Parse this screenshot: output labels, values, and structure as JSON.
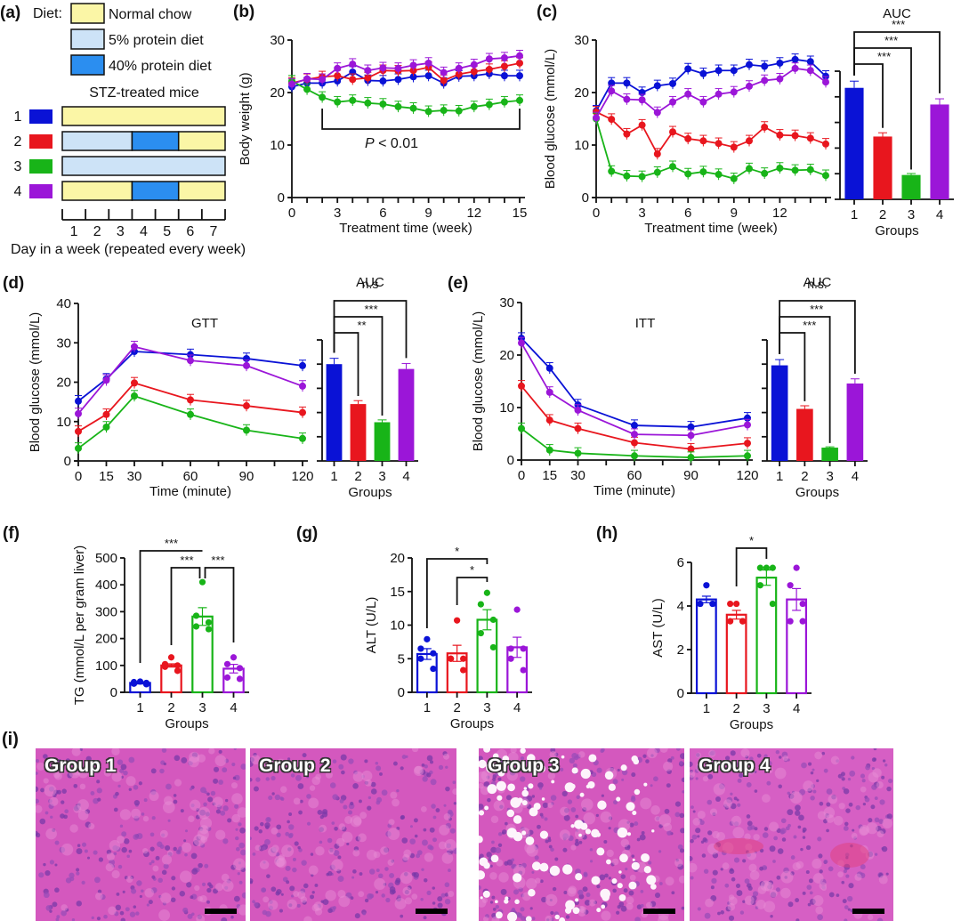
{
  "colors": {
    "g1": "#0a12d6",
    "g2": "#e8161e",
    "g3": "#18b418",
    "g4": "#9b16d8",
    "normal_chow": "#fbf6a6",
    "protein5": "#cde3f7",
    "protein40": "#2b8ef0"
  },
  "panels": {
    "a": {
      "label": "(a)",
      "diet_label": "Diet:",
      "legend": [
        {
          "name": "Normal chow",
          "key": "normal_chow"
        },
        {
          "name": "5% protein diet",
          "key": "protein5"
        },
        {
          "name": "40% protein diet",
          "key": "protein40"
        }
      ],
      "title": "STZ-treated mice",
      "groups": [
        {
          "id": "1",
          "color": "g1",
          "days": [
            "normal_chow",
            "normal_chow",
            "normal_chow",
            "normal_chow",
            "normal_chow",
            "normal_chow",
            "normal_chow"
          ]
        },
        {
          "id": "2",
          "color": "g2",
          "days": [
            "protein5",
            "protein5",
            "protein5",
            "protein40",
            "protein40",
            "normal_chow",
            "normal_chow"
          ]
        },
        {
          "id": "3",
          "color": "g3",
          "days": [
            "protein5",
            "protein5",
            "protein5",
            "protein5",
            "protein5",
            "protein5",
            "protein5"
          ]
        },
        {
          "id": "4",
          "color": "g4",
          "days": [
            "normal_chow",
            "normal_chow",
            "normal_chow",
            "protein40",
            "protein40",
            "normal_chow",
            "normal_chow"
          ]
        }
      ],
      "day_ticks": [
        "1",
        "2",
        "3",
        "4",
        "5",
        "6",
        "7"
      ],
      "xlabel": "Day in a week (repeated every week)"
    },
    "i": {
      "label": "(i)",
      "images": [
        {
          "title": "Group 1",
          "note": "normal liver histology"
        },
        {
          "title": "Group 2",
          "note": "normal liver histology"
        },
        {
          "title": "Group 3",
          "note": "lipid droplet vacuoles"
        },
        {
          "title": "Group 4",
          "note": "normal liver histology"
        }
      ]
    }
  },
  "chart_data": [
    {
      "id": "b",
      "label": "(b)",
      "type": "line",
      "xlabel": "Treatment time (week)",
      "ylabel": "Body weight (g)",
      "xlim": [
        0,
        15
      ],
      "ylim": [
        0,
        30
      ],
      "xticks": [
        "0",
        "3",
        "6",
        "9",
        "12",
        "15"
      ],
      "yticks": [
        "0",
        "10",
        "20",
        "30"
      ],
      "x": [
        0,
        1,
        2,
        3,
        4,
        5,
        6,
        7,
        8,
        9,
        10,
        11,
        12,
        13,
        14,
        15
      ],
      "series": [
        {
          "name": "1",
          "color": "g1",
          "values": [
            21.1,
            21.8,
            21.8,
            22.2,
            23.9,
            22.3,
            22.2,
            22.5,
            23.0,
            23.2,
            21.8,
            23.1,
            23.2,
            23.6,
            23.2,
            23.2
          ]
        },
        {
          "name": "2",
          "color": "g2",
          "values": [
            21.8,
            22.5,
            23.0,
            23.2,
            22.5,
            22.8,
            24.2,
            24.1,
            24.2,
            24.8,
            22.3,
            23.5,
            24.0,
            24.4,
            25.0,
            25.6
          ]
        },
        {
          "name": "3",
          "color": "g3",
          "values": [
            22.2,
            20.6,
            19.1,
            18.2,
            18.5,
            18.0,
            17.8,
            17.3,
            17.0,
            16.4,
            16.6,
            16.5,
            17.3,
            17.7,
            18.2,
            18.5
          ]
        },
        {
          "name": "4",
          "color": "g4",
          "values": [
            21.6,
            22.6,
            22.5,
            24.6,
            25.4,
            24.2,
            24.7,
            24.6,
            25.2,
            25.6,
            23.8,
            24.6,
            25.3,
            26.4,
            26.6,
            27.0
          ]
        }
      ],
      "annotation": {
        "text_italic": "P",
        "text": " < 0.01",
        "x_from": 2,
        "x_to": 15,
        "y": 13
      }
    },
    {
      "id": "c",
      "label": "(c)",
      "type": "line",
      "xlabel": "Treatment time (week)",
      "ylabel": "Blood glucose (mmol/L)",
      "xlim": [
        0,
        15
      ],
      "ylim": [
        0,
        30
      ],
      "xticks": [
        "0",
        "3",
        "6",
        "9",
        "12"
      ],
      "yticks": [
        "0",
        "10",
        "20",
        "30"
      ],
      "x": [
        0,
        1,
        2,
        3,
        4,
        5,
        6,
        7,
        8,
        9,
        10,
        11,
        12,
        13,
        14,
        15
      ],
      "series": [
        {
          "name": "1",
          "color": "g1",
          "values": [
            16.5,
            21.8,
            21.8,
            20.0,
            21.3,
            21.7,
            24.5,
            23.6,
            24.2,
            24.2,
            25.3,
            25.0,
            25.6,
            26.3,
            25.9,
            23.1
          ]
        },
        {
          "name": "2",
          "color": "g2",
          "values": [
            16.3,
            14.9,
            12.1,
            13.8,
            8.3,
            12.5,
            11.2,
            10.8,
            10.3,
            9.6,
            10.8,
            13.4,
            11.9,
            11.8,
            11.3,
            10.2
          ]
        },
        {
          "name": "3",
          "color": "g3",
          "values": [
            15.0,
            5.0,
            4.1,
            4.0,
            4.8,
            5.9,
            4.5,
            4.9,
            4.4,
            3.6,
            5.5,
            4.6,
            5.6,
            5.2,
            5.3,
            4.2
          ]
        },
        {
          "name": "4",
          "color": "g4",
          "values": [
            15.2,
            20.3,
            18.7,
            18.6,
            16.2,
            18.2,
            19.7,
            18.2,
            19.7,
            20.1,
            21.2,
            22.3,
            22.6,
            24.6,
            24.2,
            22.0
          ]
        }
      ]
    },
    {
      "id": "c-auc",
      "type": "bar",
      "title": "AUC",
      "xlabel": "Groups",
      "categories": [
        "1",
        "2",
        "3",
        "4"
      ],
      "ylim": [
        0,
        100
      ],
      "values": [
        87,
        49,
        19,
        74
      ],
      "colors": [
        "g1",
        "g2",
        "g3",
        "g4"
      ],
      "significance": [
        {
          "from": "1",
          "to": "2",
          "label": "***"
        },
        {
          "from": "1",
          "to": "3",
          "label": "***"
        },
        {
          "from": "1",
          "to": "4",
          "label": "***"
        }
      ]
    },
    {
      "id": "d",
      "label": "(d)",
      "type": "line",
      "title": "GTT",
      "xlabel": "Time (minute)",
      "ylabel": "Blood glucose (mmol/L)",
      "xlim": [
        0,
        120
      ],
      "ylim": [
        0,
        40
      ],
      "xticks": [
        "0",
        "15",
        "30",
        "60",
        "90",
        "120"
      ],
      "yticks": [
        "0",
        "10",
        "20",
        "30",
        "40"
      ],
      "x": [
        0,
        15,
        30,
        60,
        90,
        120
      ],
      "series": [
        {
          "name": "1",
          "color": "g1",
          "values": [
            15.2,
            20.8,
            27.8,
            27.0,
            26.0,
            24.2
          ]
        },
        {
          "name": "2",
          "color": "g2",
          "values": [
            7.5,
            11.8,
            19.8,
            15.5,
            14.0,
            12.3
          ]
        },
        {
          "name": "3",
          "color": "g3",
          "values": [
            3.2,
            8.6,
            16.5,
            11.8,
            7.8,
            5.7
          ]
        },
        {
          "name": "4",
          "color": "g4",
          "values": [
            12.0,
            20.5,
            29.0,
            25.5,
            24.2,
            19.0
          ]
        }
      ]
    },
    {
      "id": "d-auc",
      "type": "bar",
      "title": "AUC",
      "xlabel": "Groups",
      "categories": [
        "1",
        "2",
        "3",
        "4"
      ],
      "ylim": [
        0,
        100
      ],
      "values": [
        80,
        47,
        32,
        76
      ],
      "colors": [
        "g1",
        "g2",
        "g3",
        "g4"
      ],
      "significance": [
        {
          "from": "1",
          "to": "2",
          "label": "**"
        },
        {
          "from": "1",
          "to": "3",
          "label": "***"
        },
        {
          "from": "1",
          "to": "4",
          "label": "n.s"
        }
      ]
    },
    {
      "id": "e",
      "label": "(e)",
      "type": "line",
      "title": "ITT",
      "xlabel": "Time (minute)",
      "ylabel": "Blood glucose (mmol/L)",
      "xlim": [
        0,
        120
      ],
      "ylim": [
        0,
        30
      ],
      "xticks": [
        "0",
        "15",
        "30",
        "60",
        "90",
        "120"
      ],
      "yticks": [
        "0",
        "10",
        "20",
        "30"
      ],
      "x": [
        0,
        15,
        30,
        60,
        90,
        120
      ],
      "series": [
        {
          "name": "1",
          "color": "g1",
          "values": [
            23.2,
            17.5,
            10.5,
            6.6,
            6.3,
            8.0
          ]
        },
        {
          "name": "2",
          "color": "g2",
          "values": [
            14.1,
            7.6,
            6.0,
            3.3,
            2.1,
            3.2
          ]
        },
        {
          "name": "3",
          "color": "g3",
          "values": [
            6.0,
            1.9,
            1.3,
            0.8,
            0.5,
            0.8
          ]
        },
        {
          "name": "4",
          "color": "g4",
          "values": [
            22.3,
            12.9,
            9.5,
            4.9,
            4.7,
            6.7
          ]
        }
      ]
    },
    {
      "id": "e-auc",
      "type": "bar",
      "title": "AUC",
      "xlabel": "Groups",
      "categories": [
        "1",
        "2",
        "3",
        "4"
      ],
      "ylim": [
        0,
        100
      ],
      "values": [
        79,
        43,
        11,
        64
      ],
      "colors": [
        "g1",
        "g2",
        "g3",
        "g4"
      ],
      "significance": [
        {
          "from": "1",
          "to": "2",
          "label": "***"
        },
        {
          "from": "1",
          "to": "3",
          "label": "***"
        },
        {
          "from": "1",
          "to": "4",
          "label": "n.s."
        }
      ]
    },
    {
      "id": "f",
      "label": "(f)",
      "type": "bar",
      "xlabel": "Groups",
      "ylabel": "TG (mmol/L per gram liver)",
      "categories": [
        "1",
        "2",
        "3",
        "4"
      ],
      "ylim": [
        0,
        500
      ],
      "yticks": [
        "0",
        "100",
        "200",
        "300",
        "400",
        "500"
      ],
      "values": [
        35,
        100,
        282,
        88
      ],
      "sem": [
        4,
        6,
        33,
        16
      ],
      "colors": [
        "g1",
        "g2",
        "g3",
        "g4"
      ],
      "points": [
        [
          40,
          38,
          35,
          32,
          30
        ],
        [
          130,
          105,
          100,
          95,
          80
        ],
        [
          410,
          285,
          260,
          245,
          235
        ],
        [
          130,
          105,
          90,
          55,
          50
        ]
      ],
      "significance": [
        {
          "from": "1",
          "to": "3",
          "label": "***"
        },
        {
          "from": "2",
          "to": "3",
          "label": "***"
        },
        {
          "from": "3",
          "to": "4",
          "label": "***"
        }
      ]
    },
    {
      "id": "g",
      "label": "(g)",
      "type": "bar",
      "xlabel": "Groups",
      "ylabel": "ALT (U/L)",
      "categories": [
        "1",
        "2",
        "3",
        "4"
      ],
      "ylim": [
        0,
        20
      ],
      "yticks": [
        "0",
        "5",
        "10",
        "15",
        "20"
      ],
      "values": [
        5.7,
        5.8,
        10.8,
        6.7
      ],
      "sem": [
        0.8,
        1.2,
        1.5,
        1.5
      ],
      "colors": [
        "g1",
        "g2",
        "g3",
        "g4"
      ],
      "points": [
        [
          7.9,
          6.5,
          5.8,
          5.0,
          3.5
        ],
        [
          10.7,
          5.0,
          5.0,
          5.0,
          3.3
        ],
        [
          14.8,
          13.1,
          10.8,
          8.8,
          6.7
        ],
        [
          12.3,
          6.5,
          6.5,
          5.0,
          3.3
        ]
      ],
      "significance": [
        {
          "from": "1",
          "to": "3",
          "label": "*"
        },
        {
          "from": "2",
          "to": "3",
          "label": "*"
        }
      ]
    },
    {
      "id": "h",
      "label": "(h)",
      "type": "bar",
      "xlabel": "Groups",
      "ylabel": "AST (U/L)",
      "categories": [
        "1",
        "2",
        "3",
        "4"
      ],
      "ylim": [
        0,
        6
      ],
      "yticks": [
        "0",
        "2",
        "4",
        "6"
      ],
      "values": [
        4.3,
        3.6,
        5.3,
        4.3
      ],
      "sem": [
        0.15,
        0.2,
        0.35,
        0.5
      ],
      "colors": [
        "g1",
        "g2",
        "g3",
        "g4"
      ],
      "points": [
        [
          4.95,
          4.1,
          4.1,
          4.1,
          4.1
        ],
        [
          4.1,
          4.1,
          3.3,
          3.3,
          3.3
        ],
        [
          5.75,
          5.75,
          5.75,
          4.95,
          4.1
        ],
        [
          5.75,
          4.95,
          4.1,
          3.3,
          3.3
        ]
      ],
      "significance": [
        {
          "from": "2",
          "to": "3",
          "label": "*"
        }
      ]
    }
  ]
}
